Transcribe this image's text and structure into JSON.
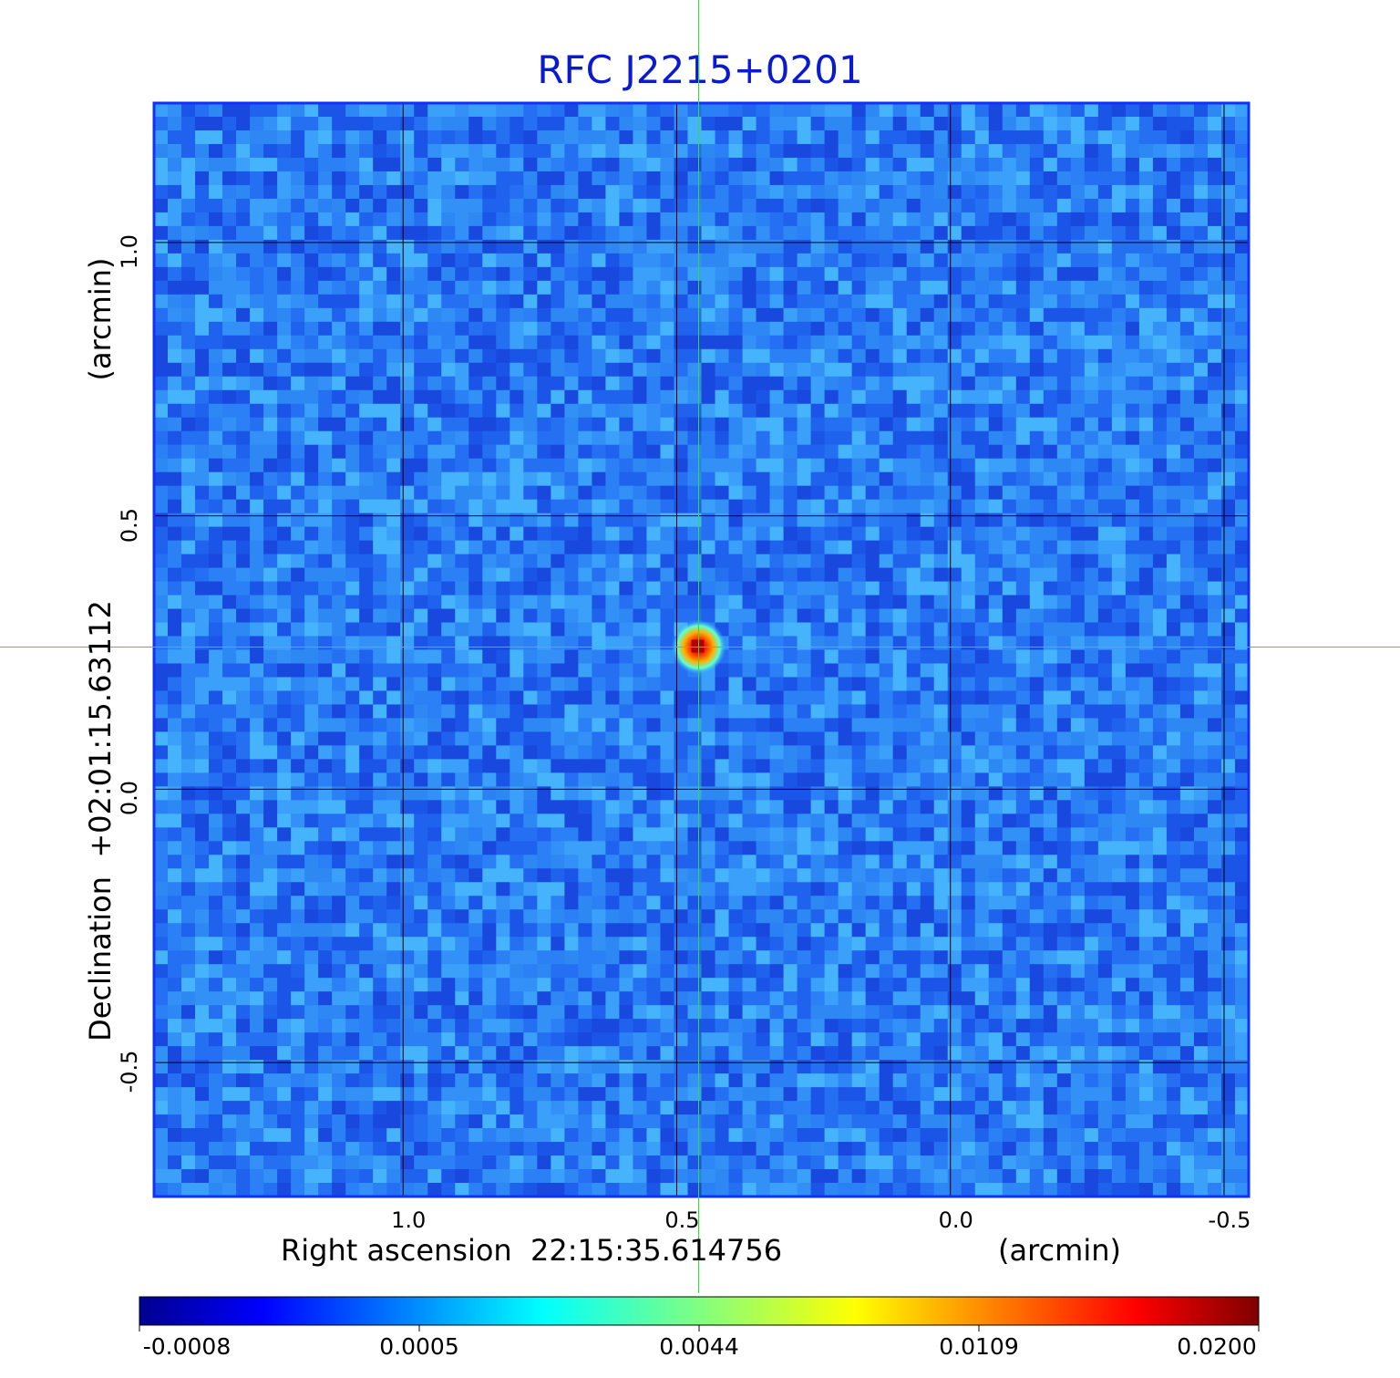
{
  "chart_data": {
    "type": "heatmap",
    "title": "RFC J2215+0201",
    "xlabel": "Right ascension  22:15:35.614756",
    "xunit": "(arcmin)",
    "ylabel": "Declination  +02:01:15.63112",
    "yunit": "(arcmin)",
    "x_range": [
      1.455,
      -0.545
    ],
    "y_range": [
      -0.745,
      1.255
    ],
    "x_ticks": [
      {
        "value": 1.0,
        "label": "1.0"
      },
      {
        "value": 0.5,
        "label": "0.5"
      },
      {
        "value": 0.0,
        "label": "0.0"
      },
      {
        "value": -0.5,
        "label": "-0.5"
      }
    ],
    "y_ticks": [
      {
        "value": 1.0,
        "label": "1.0"
      },
      {
        "value": 0.5,
        "label": "0.5"
      },
      {
        "value": 0.0,
        "label": "0.0"
      },
      {
        "value": -0.5,
        "label": "-0.5"
      }
    ],
    "grid": true,
    "crosshair": {
      "x": 0.46,
      "y": 0.26
    },
    "source_peak": {
      "x": 0.46,
      "y": 0.26,
      "value": 0.02
    },
    "colorbar": {
      "colormap": "jet",
      "tick_labels": [
        "-0.0008",
        "0.0005",
        "0.0044",
        "0.0109",
        "0.0200"
      ],
      "min": -0.0008,
      "max": 0.02
    },
    "colors": {
      "title": "#0a1ad0",
      "frame": "#1030ff",
      "crosshair": "#30e030",
      "background_noise": "#2a7cf0"
    }
  }
}
